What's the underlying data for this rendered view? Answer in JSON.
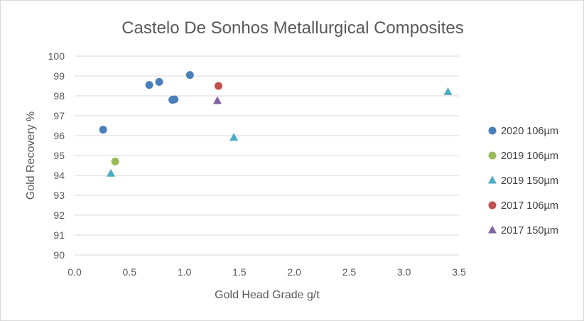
{
  "chart_data": {
    "type": "scatter",
    "title": "Castelo De Sonhos  Metallurgical Composites",
    "xlabel": "Gold Head Grade g/t",
    "ylabel": "Gold Recovery %",
    "xlim": [
      0,
      3.5
    ],
    "ylim": [
      90,
      100
    ],
    "x_ticks": [
      "0.0",
      "0.5",
      "1.0",
      "1.5",
      "2.0",
      "2.5",
      "3.0",
      "3.5"
    ],
    "y_ticks": [
      "90",
      "91",
      "92",
      "93",
      "94",
      "95",
      "96",
      "97",
      "98",
      "99",
      "100"
    ],
    "grid": "horizontal",
    "legend_position": "right",
    "series": [
      {
        "name": "2020 106µm",
        "marker": "circle",
        "color": "#4a7ebb",
        "points": [
          [
            0.26,
            96.3
          ],
          [
            0.68,
            98.55
          ],
          [
            0.77,
            98.7
          ],
          [
            0.89,
            97.8
          ],
          [
            0.91,
            97.82
          ],
          [
            1.05,
            99.05
          ]
        ]
      },
      {
        "name": "2019 106µm",
        "marker": "circle",
        "color": "#9bbb59",
        "points": [
          [
            0.37,
            94.7
          ]
        ]
      },
      {
        "name": "2019 150µm",
        "marker": "triangle",
        "color": "#4bacc6",
        "points": [
          [
            0.33,
            94.1
          ],
          [
            1.45,
            95.9
          ],
          [
            3.4,
            98.2
          ]
        ]
      },
      {
        "name": "2017 106µm",
        "marker": "circle",
        "color": "#c0504d",
        "points": [
          [
            1.31,
            98.5
          ]
        ]
      },
      {
        "name": "2017 150µm",
        "marker": "triangle",
        "color": "#8064a2",
        "points": [
          [
            1.3,
            97.75
          ]
        ]
      }
    ]
  }
}
